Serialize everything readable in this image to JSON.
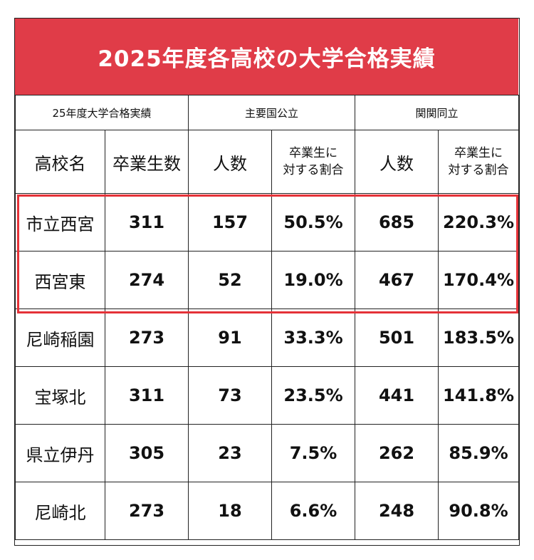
{
  "title": "2025年度各高校の大学合格実績",
  "group_headers": [
    "25年度大学合格実績",
    "主要国公立",
    "関関同立"
  ],
  "column_headers": {
    "school": "高校名",
    "graduates": "卒業生数",
    "national_count": "人数",
    "national_ratio_line1": "卒業生に",
    "national_ratio_line2": "対する割合",
    "kkdr_count": "人数",
    "kkdr_ratio_line1": "卒業生に",
    "kkdr_ratio_line2": "対する割合"
  },
  "rows": [
    {
      "school": "市立西宮",
      "graduates": "311",
      "national_count": "157",
      "national_ratio": "50.5%",
      "kkdr_count": "685",
      "kkdr_ratio": "220.3%"
    },
    {
      "school": "西宮東",
      "graduates": "274",
      "national_count": "52",
      "national_ratio": "19.0%",
      "kkdr_count": "467",
      "kkdr_ratio": "170.4%"
    },
    {
      "school": "尼崎稲園",
      "graduates": "273",
      "national_count": "91",
      "national_ratio": "33.3%",
      "kkdr_count": "501",
      "kkdr_ratio": "183.5%"
    },
    {
      "school": "宝塚北",
      "graduates": "311",
      "national_count": "73",
      "national_ratio": "23.5%",
      "kkdr_count": "441",
      "kkdr_ratio": "141.8%"
    },
    {
      "school": "県立伊丹",
      "graduates": "305",
      "national_count": "23",
      "national_ratio": "7.5%",
      "kkdr_count": "262",
      "kkdr_ratio": "85.9%"
    },
    {
      "school": "尼崎北",
      "graduates": "273",
      "national_count": "18",
      "national_ratio": "6.6%",
      "kkdr_count": "248",
      "kkdr_ratio": "90.8%"
    }
  ],
  "colors": {
    "title_background": "#e03c48",
    "highlight_border": "#e53238"
  }
}
